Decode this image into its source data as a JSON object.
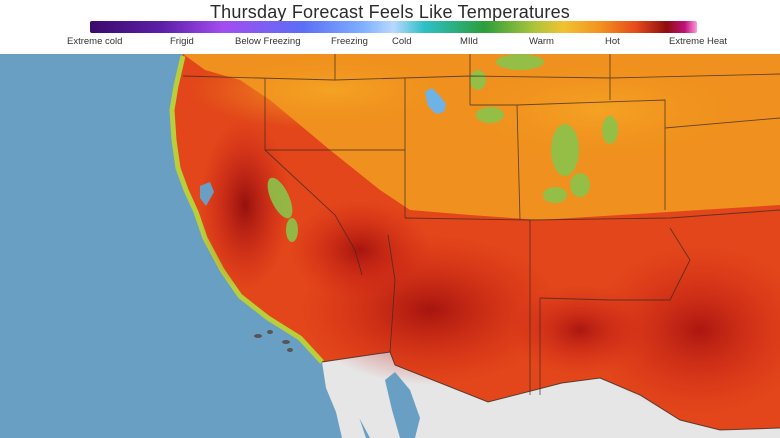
{
  "title": "Thursday Forecast Feels Like Temperatures",
  "legend": {
    "labels": [
      "Extreme cold",
      "Frigid",
      "Below Freezing",
      "Freezing",
      "Cold",
      "MIld",
      "Warm",
      "Hot",
      "Extreme Heat"
    ]
  },
  "colors": {
    "ocean": "#6a9fc4",
    "mexico_land": "#e8e8e8",
    "warm_orange": "#f0901e",
    "hot_red": "#c8141a",
    "deep_red": "#8e0b0b",
    "mild_green": "#8bc34a",
    "lake_blue": "#6fb2e6"
  }
}
